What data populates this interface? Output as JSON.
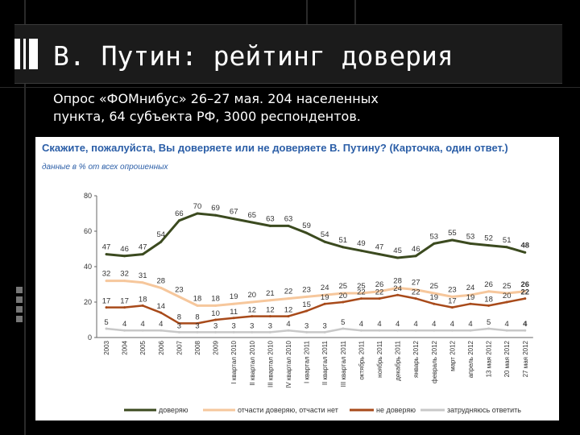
{
  "slide": {
    "title": "В. Путин: рейтинг доверия",
    "subtitle": "Опрос «ФОМнибус» 26–27 мая. 204 населенных пункта, 64 субъекта РФ, 3000 респондентов."
  },
  "chart_data": {
    "type": "line",
    "title": "Скажите, пожалуйста, Вы доверяете или не доверяете В. Путину? (Карточка, один ответ.)",
    "subtitle": "данные в % от всех опрошенных",
    "ylim": [
      0,
      80
    ],
    "yticks": [
      "0",
      "20",
      "40",
      "60",
      "80"
    ],
    "grid": false,
    "legend_position": "bottom",
    "categories": [
      "2003",
      "2004",
      "2005",
      "2006",
      "2007",
      "2008",
      "2009",
      "I квартал 2010",
      "II квартал 2010",
      "III квартал 2010",
      "IV квартал 2010",
      "I квартал 2011",
      "II квартал 2011",
      "III квартал 2011",
      "октябрь 2011",
      "ноябрь 2011",
      "декабрь 2011",
      "январь 2012",
      "февраль 2012",
      "март 2012",
      "апрель 2012",
      "13 мая 2012",
      "20 мая 2012",
      "27 мая 2012"
    ],
    "series": [
      {
        "name": "доверяю",
        "color": "#3b4a1f",
        "values": [
          47,
          46,
          47,
          54,
          66,
          70,
          69,
          67,
          65,
          63,
          63,
          59,
          54,
          51,
          49,
          47,
          45,
          46,
          53,
          55,
          53,
          52,
          51,
          48
        ]
      },
      {
        "name": "отчасти доверяю, отчасти нет",
        "color": "#f6c79c",
        "values": [
          32,
          32,
          31,
          28,
          23,
          18,
          18,
          19,
          20,
          21,
          22,
          23,
          24,
          25,
          25,
          26,
          28,
          27,
          25,
          23,
          24,
          26,
          25,
          26
        ]
      },
      {
        "name": "не доверяю",
        "color": "#a84a1a",
        "values": [
          17,
          17,
          18,
          14,
          8,
          8,
          10,
          11,
          12,
          12,
          12,
          15,
          19,
          20,
          22,
          22,
          24,
          22,
          19,
          17,
          19,
          18,
          20,
          22
        ]
      },
      {
        "name": "затрудняюсь ответить",
        "color": "#c8c8c8",
        "values": [
          5,
          4,
          4,
          4,
          3,
          3,
          3,
          3,
          3,
          3,
          4,
          3,
          3,
          5,
          4,
          4,
          4,
          4,
          4,
          4,
          4,
          5,
          4,
          4
        ]
      }
    ]
  }
}
